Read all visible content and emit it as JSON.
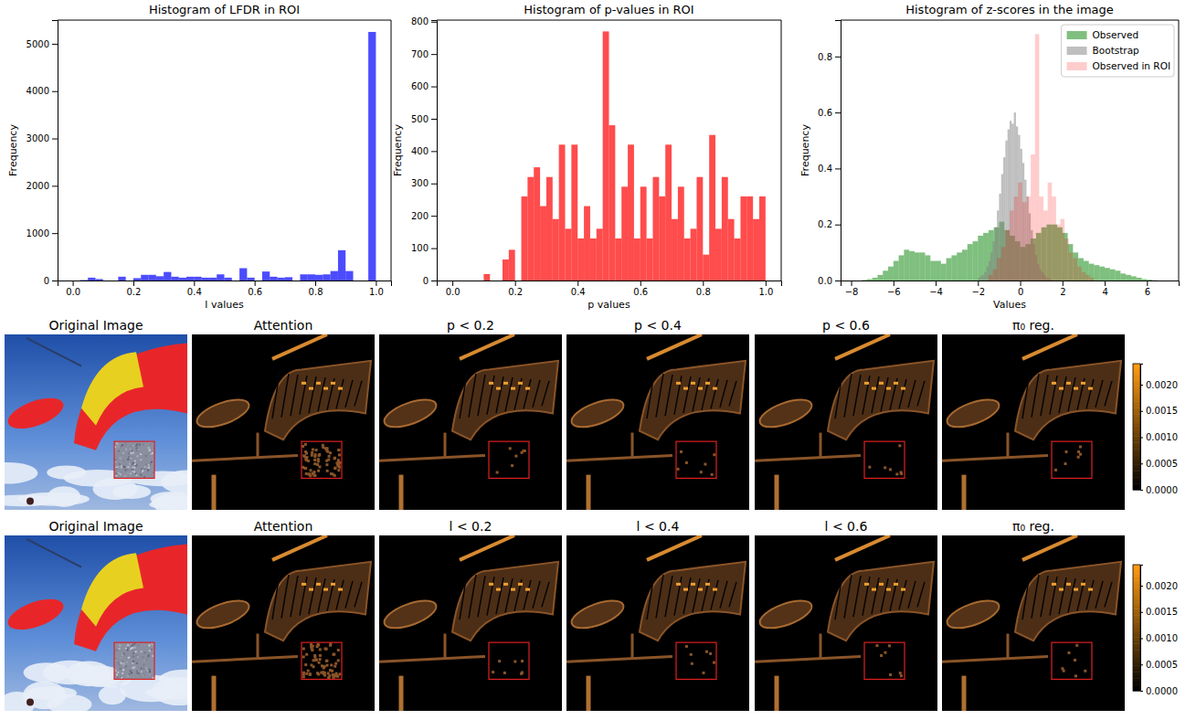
{
  "chart_data": [
    {
      "type": "histogram",
      "title": "Histogram of LFDR in ROI",
      "x_label": "l values",
      "y_label": "Frequency",
      "xlim": [
        -0.05,
        1.05
      ],
      "ylim": [
        0,
        5500
      ],
      "xticks": [
        {
          "value": 0,
          "label": "0.0"
        },
        {
          "value": 0.2,
          "label": "0.2"
        },
        {
          "value": 0.4,
          "label": "0.4"
        },
        {
          "value": 0.6,
          "label": "0.6"
        },
        {
          "value": 0.8,
          "label": "0.8"
        },
        {
          "value": 1,
          "label": "1.0"
        }
      ],
      "yticks": [
        0,
        1000,
        2000,
        3000,
        4000,
        5000
      ],
      "series": [
        {
          "color": "blue",
          "bins": [
            0,
            0.025,
            0.05,
            0.075,
            0.1,
            0.125,
            0.15,
            0.175,
            0.2,
            0.225,
            0.25,
            0.275,
            0.3,
            0.325,
            0.35,
            0.375,
            0.4,
            0.425,
            0.45,
            0.475,
            0.5,
            0.525,
            0.55,
            0.575,
            0.6,
            0.625,
            0.65,
            0.675,
            0.7,
            0.725,
            0.75,
            0.775,
            0.8,
            0.825,
            0.85,
            0.875,
            0.9,
            0.925,
            0.95,
            0.975,
            1
          ],
          "values": [
            0,
            10,
            60,
            30,
            0,
            0,
            80,
            0,
            50,
            120,
            120,
            90,
            180,
            80,
            60,
            80,
            80,
            60,
            60,
            130,
            60,
            0,
            260,
            60,
            0,
            190,
            80,
            60,
            70,
            0,
            130,
            130,
            120,
            130,
            200,
            640,
            200,
            0,
            0,
            5250
          ]
        }
      ]
    },
    {
      "type": "histogram",
      "title": "Histogram of p-values in ROI",
      "x_label": "p values",
      "y_label": "Frequency",
      "xlim": [
        -0.05,
        1.05
      ],
      "ylim": [
        0,
        805
      ],
      "xticks": [
        {
          "value": 0,
          "label": "0.0"
        },
        {
          "value": 0.2,
          "label": "0.2"
        },
        {
          "value": 0.4,
          "label": "0.4"
        },
        {
          "value": 0.6,
          "label": "0.6"
        },
        {
          "value": 0.8,
          "label": "0.8"
        },
        {
          "value": 1,
          "label": "1.0"
        }
      ],
      "yticks": [
        0,
        100,
        200,
        300,
        400,
        500,
        600,
        700,
        800
      ],
      "series": [
        {
          "color": "red",
          "bins": [
            0,
            0.02,
            0.04,
            0.06,
            0.08,
            0.1,
            0.12,
            0.14,
            0.16,
            0.18,
            0.2,
            0.22,
            0.24,
            0.26,
            0.28,
            0.3,
            0.32,
            0.34,
            0.36,
            0.38,
            0.4,
            0.42,
            0.44,
            0.46,
            0.48,
            0.5,
            0.52,
            0.54,
            0.56,
            0.58,
            0.6,
            0.62,
            0.64,
            0.66,
            0.68,
            0.7,
            0.72,
            0.74,
            0.76,
            0.78,
            0.8,
            0.82,
            0.84,
            0.86,
            0.88,
            0.9,
            0.92,
            0.94,
            0.96,
            0.98,
            1
          ],
          "values": [
            0,
            0,
            0,
            0,
            0,
            20,
            0,
            0,
            65,
            95,
            0,
            260,
            320,
            350,
            230,
            320,
            190,
            420,
            160,
            420,
            130,
            230,
            130,
            160,
            770,
            480,
            130,
            290,
            420,
            130,
            290,
            130,
            320,
            260,
            420,
            190,
            290,
            130,
            160,
            320,
            80,
            450,
            160,
            320,
            190,
            130,
            260,
            260,
            190,
            260
          ]
        }
      ]
    },
    {
      "type": "histogram",
      "title": "Histogram of z-scores in the image",
      "x_label": "Values",
      "y_label": "Frequency",
      "xlim": [
        -8.5,
        7.5
      ],
      "ylim": [
        0,
        0.93
      ],
      "legend": "upper right",
      "xticks": [
        {
          "value": -8,
          "label": "−8"
        },
        {
          "value": -6,
          "label": "−6"
        },
        {
          "value": -4,
          "label": "−4"
        },
        {
          "value": -2,
          "label": "−2"
        },
        0,
        2,
        4,
        6
      ],
      "yticks": [
        {
          "value": 0,
          "label": "0.0"
        },
        {
          "value": 0.2,
          "label": "0.2"
        },
        {
          "value": 0.4,
          "label": "0.4"
        },
        {
          "value": 0.6,
          "label": "0.6"
        },
        {
          "value": 0.8,
          "label": "0.8"
        }
      ],
      "series": [
        {
          "name": "Observed",
          "color": "green",
          "bins": [
            -7.5,
            -7.25,
            -7,
            -6.75,
            -6.5,
            -6.25,
            -6,
            -5.75,
            -5.5,
            -5.25,
            -5,
            -4.75,
            -4.5,
            -4.25,
            -4,
            -3.75,
            -3.5,
            -3.25,
            -3,
            -2.75,
            -2.5,
            -2.25,
            -2,
            -1.75,
            -1.5,
            -1.25,
            -1,
            -0.75,
            -0.5,
            -0.25,
            0,
            0.25,
            0.5,
            0.75,
            1,
            1.25,
            1.5,
            1.75,
            2,
            2.25,
            2.5,
            2.75,
            3,
            3.25,
            3.5,
            3.75,
            4,
            4.25,
            4.5,
            4.75,
            5,
            5.25,
            5.5,
            5.75,
            6,
            6.25,
            6.5
          ],
          "values": [
            0.002,
            0.005,
            0.01,
            0.02,
            0.035,
            0.05,
            0.07,
            0.09,
            0.11,
            0.105,
            0.1,
            0.1,
            0.09,
            0.07,
            0.07,
            0.06,
            0.08,
            0.09,
            0.1,
            0.11,
            0.13,
            0.14,
            0.16,
            0.17,
            0.18,
            0.19,
            0.21,
            0.18,
            0.16,
            0.14,
            0.12,
            0.13,
            0.15,
            0.17,
            0.19,
            0.2,
            0.2,
            0.19,
            0.17,
            0.13,
            0.1,
            0.08,
            0.07,
            0.06,
            0.055,
            0.05,
            0.045,
            0.04,
            0.035,
            0.025,
            0.02,
            0.015,
            0.01,
            0.005,
            0.003,
            0.001
          ]
        },
        {
          "name": "Bootstrap",
          "color": "gray",
          "bins": [
            -2,
            -1.9,
            -1.8,
            -1.7,
            -1.6,
            -1.5,
            -1.4,
            -1.3,
            -1.2,
            -1.1,
            -1,
            -0.9,
            -0.8,
            -0.7,
            -0.6,
            -0.5,
            -0.4,
            -0.3,
            -0.2,
            -0.1,
            0,
            0.1,
            0.2,
            0.3,
            0.4,
            0.5,
            0.6,
            0.7,
            0.8,
            0.9,
            1,
            1.1,
            1.2,
            1.3,
            1.4,
            1.5
          ],
          "values": [
            0.01,
            0.015,
            0.02,
            0.03,
            0.05,
            0.07,
            0.1,
            0.14,
            0.19,
            0.25,
            0.31,
            0.38,
            0.44,
            0.5,
            0.54,
            0.57,
            0.56,
            0.6,
            0.55,
            0.52,
            0.47,
            0.42,
            0.36,
            0.3,
            0.24,
            0.18,
            0.13,
            0.09,
            0.06,
            0.04,
            0.03,
            0.02,
            0.01,
            0.008,
            0.005
          ]
        },
        {
          "name": "Observed in ROI",
          "color": "red",
          "bins": [
            -1.5,
            -1.3,
            -1.1,
            -0.9,
            -0.7,
            -0.5,
            -0.3,
            -0.1,
            0.1,
            0.3,
            0.5,
            0.7,
            0.9,
            1.1,
            1.3,
            1.5,
            1.7,
            1.9,
            2.1,
            2.3,
            2.5,
            2.7,
            2.9,
            3.1,
            3.3,
            3.5
          ],
          "values": [
            0.02,
            0.04,
            0.08,
            0.12,
            0.18,
            0.25,
            0.3,
            0.35,
            0.28,
            0.3,
            0.45,
            0.88,
            0.3,
            0.25,
            0.35,
            0.3,
            0.2,
            0.22,
            0.15,
            0.1,
            0.08,
            0.05,
            0.03,
            0.02,
            0.01
          ]
        }
      ]
    },
    {
      "type": "image_grid",
      "rows": [
        {
          "titles": [
            "Original Image",
            "Attention",
            "p < 0.2",
            "p < 0.4",
            "p < 0.6",
            "π₀ reg."
          ]
        },
        {
          "titles": [
            "Original Image",
            "Attention",
            "l < 0.2",
            "l < 0.4",
            "l < 0.6",
            "π₀ reg."
          ]
        }
      ],
      "colorbar": {
        "range": [
          0,
          0.0024
        ],
        "ticks": [
          {
            "value": 0,
            "label": "0.0000"
          },
          {
            "value": 0.0005,
            "label": "0.0005"
          },
          {
            "value": 0.001,
            "label": "0.0010"
          },
          {
            "value": 0.0015,
            "label": "0.0015"
          },
          {
            "value": 0.002,
            "label": "0.0020"
          }
        ]
      }
    }
  ]
}
